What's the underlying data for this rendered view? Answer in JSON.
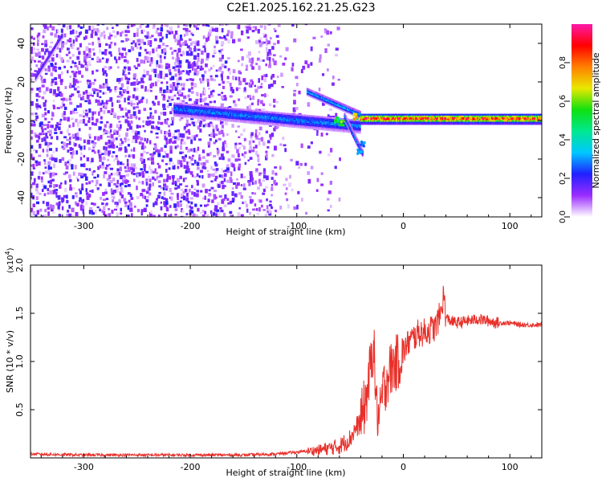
{
  "title": "C2E1.2025.162.21.25.G23",
  "chart_data": [
    {
      "type": "heatmap",
      "xlabel": "Height of straight line (km)",
      "ylabel": "Frequency (Hz)",
      "xlim": [
        -350,
        130
      ],
      "ylim": [
        -50,
        50
      ],
      "x_ticks": [
        -300,
        -200,
        -100,
        0,
        100
      ],
      "y_ticks": [
        -40,
        -20,
        0,
        20,
        40
      ],
      "colorbar": {
        "label": "Normalized spectral amplitude",
        "range": [
          0,
          1
        ],
        "ticks": [
          0.0,
          0.2,
          0.4,
          0.6,
          0.8
        ],
        "colors": [
          "#ffffff",
          "#9b2cff",
          "#2020ff",
          "#00c8ff",
          "#00e890",
          "#10e010",
          "#e8e800",
          "#ff8000",
          "#ff0000",
          "#ff1aa8"
        ]
      },
      "features": {
        "noise_region_x": [
          -350,
          -100
        ],
        "carrier": {
          "x": [
            -40,
            130
          ],
          "freq": 1.0,
          "amplitude": 0.9
        },
        "upper_branch": {
          "x": [
            -90,
            -40
          ],
          "freq_start": 15,
          "freq_end": 3
        },
        "lower_branch": {
          "x": [
            -55,
            -38
          ],
          "freq_start": 2,
          "freq_end": -17
        },
        "diagonal_trace": {
          "x": [
            -345,
            -320
          ],
          "freq_start": 22,
          "freq_end": 44
        },
        "spread_band": {
          "x": [
            -215,
            -40
          ],
          "freq_start": 6,
          "freq_end": -3
        }
      }
    },
    {
      "type": "line",
      "xlabel": "Height of straight line (km)",
      "ylabel": "SNR (10 * v/v)",
      "y_multiplier": "(x10",
      "y_multiplier_exp": "4",
      "y_multiplier_close": ")",
      "xlim": [
        -350,
        130
      ],
      "ylim": [
        0,
        2.0
      ],
      "x_ticks": [
        -300,
        -200,
        -100,
        0,
        100
      ],
      "y_ticks": [
        0.5,
        1.0,
        1.5,
        2.0
      ],
      "series_color": "#e8302a",
      "series": [
        {
          "x": [
            -350,
            -300,
            -250,
            -200,
            -150,
            -120,
            -100,
            -80,
            -60,
            -50,
            -45,
            -40,
            -35,
            -30,
            -28,
            -25,
            -22,
            -20,
            -15,
            -10,
            -5,
            0,
            5,
            10,
            15,
            20,
            25,
            30,
            35,
            38,
            40,
            45,
            50,
            60,
            70,
            80,
            90,
            100,
            110,
            120,
            130
          ],
          "y": [
            0.04,
            0.03,
            0.03,
            0.03,
            0.03,
            0.04,
            0.06,
            0.08,
            0.12,
            0.2,
            0.3,
            0.38,
            0.6,
            1.0,
            1.2,
            0.5,
            0.4,
            0.65,
            0.85,
            0.95,
            1.0,
            1.1,
            1.2,
            1.25,
            1.3,
            1.3,
            1.33,
            1.35,
            1.5,
            1.7,
            1.45,
            1.42,
            1.4,
            1.42,
            1.44,
            1.42,
            1.4,
            1.4,
            1.38,
            1.38,
            1.38
          ]
        }
      ]
    }
  ]
}
